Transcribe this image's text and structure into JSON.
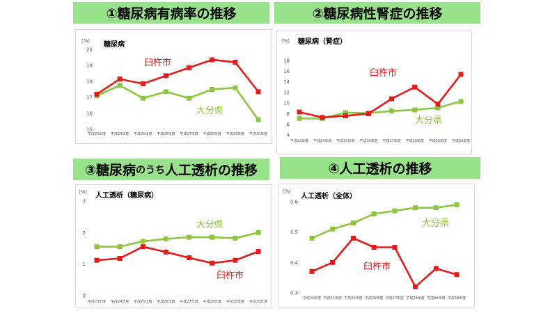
{
  "headers": {
    "h1": "①糖尿病有病率の推移",
    "h2": "②糖尿病性腎症の推移",
    "h3_a": "③糖尿病",
    "h3_b": "のうち",
    "h3_c": "人工透析の推移",
    "h4": "④人工透析の推移"
  },
  "colors": {
    "city": "#e31b1b",
    "pref": "#8cc63f",
    "tick": "#595959",
    "header_bg": "#99e28c"
  },
  "chart_data": [
    {
      "type": "line",
      "title": "糖尿病",
      "unit": "(%)",
      "categories": [
        "平成23年度",
        "平成24年度",
        "平成25年度",
        "平成26年度",
        "平成27年度",
        "平成28年度",
        "平成29年度",
        "平成30年度"
      ],
      "ylim": [
        15,
        20
      ],
      "yticks": [
        15,
        16,
        17,
        18,
        19,
        20
      ],
      "series": [
        {
          "name": "臼杵市",
          "values": [
            17.2,
            18.15,
            17.85,
            18.35,
            18.85,
            19.35,
            19.2,
            17.35
          ]
        },
        {
          "name": "大分県",
          "values": [
            17.1,
            17.75,
            16.95,
            17.35,
            16.95,
            17.5,
            17.6,
            15.6
          ]
        }
      ]
    },
    {
      "type": "line",
      "title": "糖尿病（腎症）",
      "unit": "(%)",
      "categories": [
        "平成23年度",
        "平成24年度",
        "平成25年度",
        "平成26年度",
        "平成27年度",
        "平成28年度",
        "平成29年度",
        "平成30年度"
      ],
      "ylim": [
        4,
        18
      ],
      "yticks": [
        4,
        6,
        8,
        10,
        12,
        14,
        16,
        18
      ],
      "series": [
        {
          "name": "臼杵市",
          "values": [
            8.3,
            7.3,
            7.6,
            8.0,
            10.8,
            13.0,
            9.8,
            15.4
          ]
        },
        {
          "name": "大分県",
          "values": [
            7.1,
            7.1,
            8.2,
            8.1,
            8.5,
            8.7,
            9.1,
            10.3
          ]
        }
      ]
    },
    {
      "type": "line",
      "title": "人工透析（糖尿病）",
      "unit": "(%)",
      "categories": [
        "平成23年度",
        "平成24年度",
        "平成25年度",
        "平成26年度",
        "平成27年度",
        "平成28年度",
        "平成29年度",
        "平成30年度"
      ],
      "ylim": [
        0,
        3
      ],
      "yticks": [
        0,
        1,
        2,
        3
      ],
      "series": [
        {
          "name": "臼杵市",
          "values": [
            1.12,
            1.18,
            1.55,
            1.38,
            1.2,
            1.03,
            1.12,
            1.4
          ]
        },
        {
          "name": "大分県",
          "values": [
            1.55,
            1.55,
            1.72,
            1.8,
            1.85,
            1.85,
            1.82,
            2.0
          ]
        }
      ]
    },
    {
      "type": "line",
      "title": "人工透析（全体）",
      "unit": "(%)",
      "categories": [
        "平成23年度",
        "平成24年度",
        "平成25年度",
        "平成26年度",
        "平成27年度",
        "平成28年度",
        "平成29年度",
        "平成30年度"
      ],
      "ylim": [
        0.3,
        0.6
      ],
      "yticks": [
        0.3,
        0.4,
        0.5,
        0.6
      ],
      "series": [
        {
          "name": "臼杵市",
          "values": [
            0.37,
            0.4,
            0.48,
            0.45,
            0.45,
            0.32,
            0.38,
            0.36
          ]
        },
        {
          "name": "大分県",
          "values": [
            0.48,
            0.51,
            0.53,
            0.56,
            0.57,
            0.58,
            0.58,
            0.59
          ]
        }
      ]
    }
  ]
}
